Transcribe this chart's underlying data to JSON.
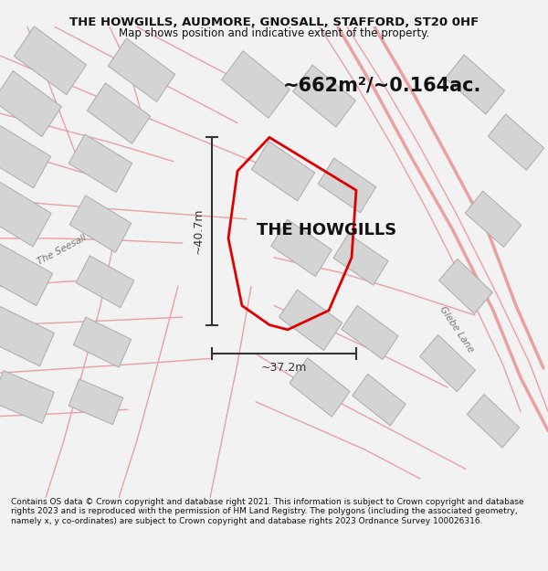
{
  "title_line1": "THE HOWGILLS, AUDMORE, GNOSALL, STAFFORD, ST20 0HF",
  "title_line2": "Map shows position and indicative extent of the property.",
  "area_label": "~662m²/~0.164ac.",
  "property_label": "THE HOWGILLS",
  "dim_height": "~40.7m",
  "dim_width": "~37.2m",
  "road_label_left": "The Seesall",
  "road_label_right": "Glebe Lane",
  "footer_text": "Contains OS data © Crown copyright and database right 2021. This information is subject to Crown copyright and database rights 2023 and is reproduced with the permission of HM Land Registry. The polygons (including the associated geometry, namely x, y co-ordinates) are subject to Crown copyright and database rights 2023 Ordnance Survey 100026316.",
  "bg_color": "#f2f2f2",
  "map_bg_color": "#efefef",
  "plot_color": "#dd0000",
  "plot_fill": "none",
  "road_color": "#e8a0a0",
  "road_lw": 1.0,
  "building_color": "#d4d4d4",
  "building_edge": "#aaaaaa",
  "dim_color": "#333333",
  "label_color": "#777777"
}
